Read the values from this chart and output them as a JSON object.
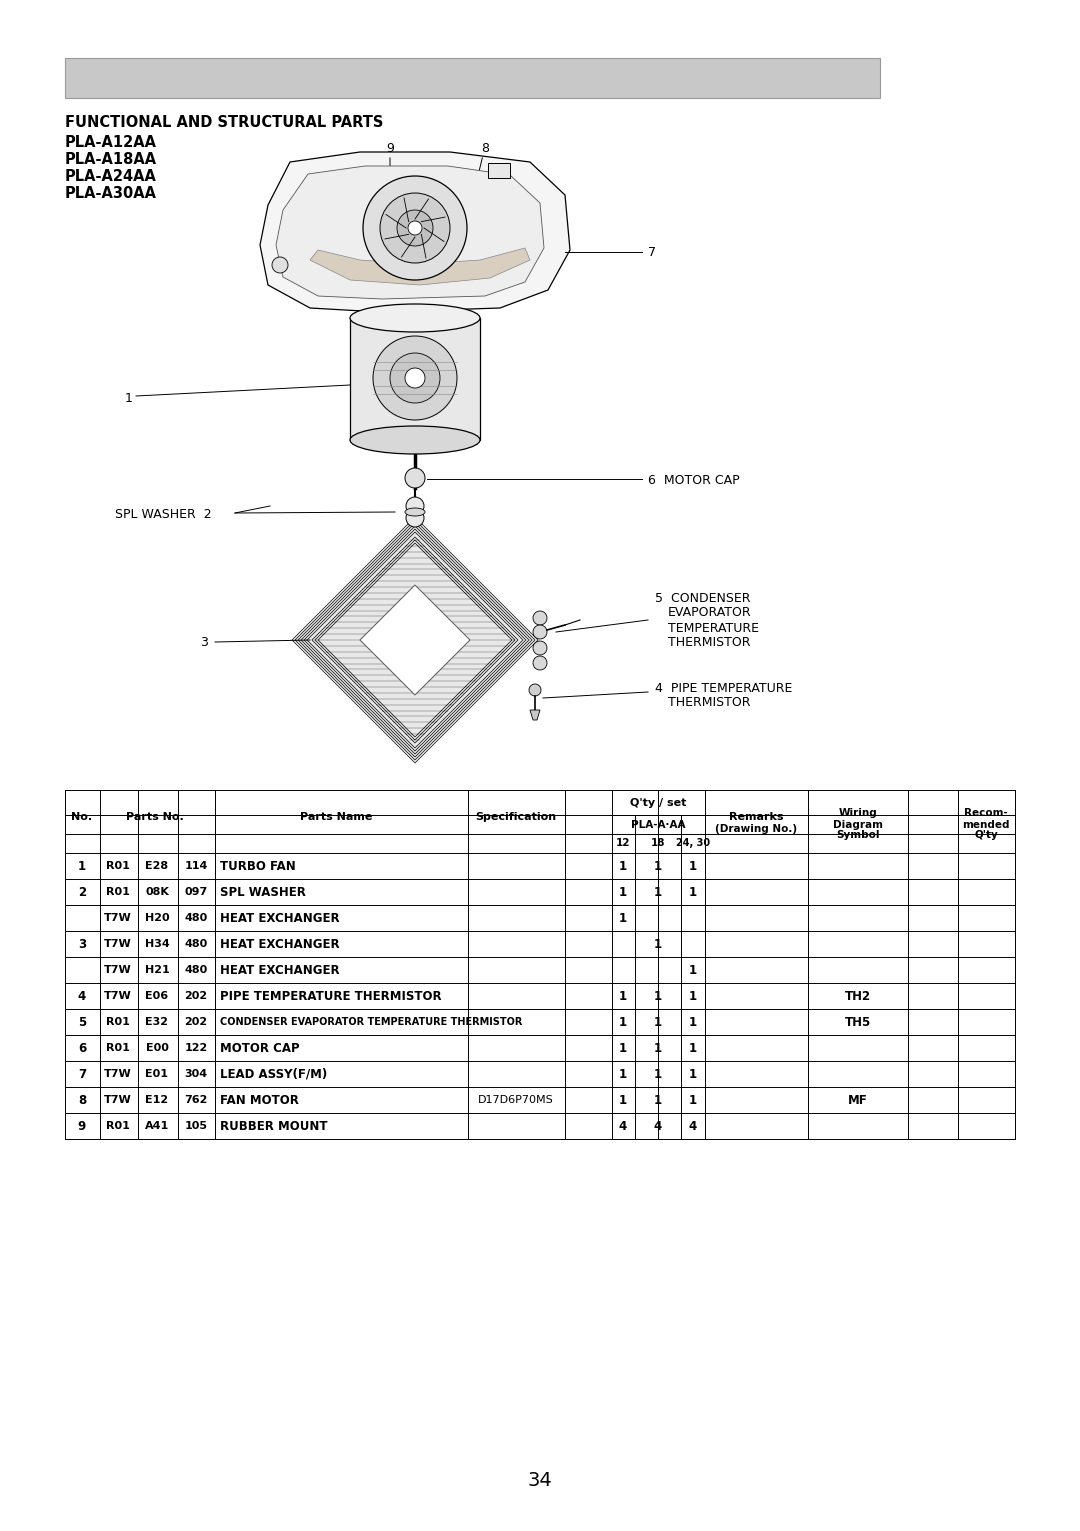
{
  "page_number": "34",
  "header_box_color": "#c8c8c8",
  "header_box_edge": "#999999",
  "title_line1": "FUNCTIONAL AND STRUCTURAL PARTS",
  "title_line2": "PLA-A12AA",
  "title_line3": "PLA-A18AA",
  "title_line4": "PLA-A24AA",
  "title_line5": "PLA-A30AA",
  "bg_color": "#ffffff",
  "table_rows": [
    [
      "1",
      "R01",
      "E28",
      "114",
      "TURBO FAN",
      "",
      "1",
      "1",
      "1",
      "",
      "",
      ""
    ],
    [
      "2",
      "R01",
      "08K",
      "097",
      "SPL WASHER",
      "",
      "1",
      "1",
      "1",
      "",
      "",
      ""
    ],
    [
      "",
      "T7W",
      "H20",
      "480",
      "HEAT EXCHANGER",
      "",
      "1",
      "",
      "",
      "",
      "",
      ""
    ],
    [
      "3",
      "T7W",
      "H34",
      "480",
      "HEAT EXCHANGER",
      "",
      "",
      "1",
      "",
      "",
      "",
      ""
    ],
    [
      "",
      "T7W",
      "H21",
      "480",
      "HEAT EXCHANGER",
      "",
      "",
      "",
      "1",
      "",
      "",
      ""
    ],
    [
      "4",
      "T7W",
      "E06",
      "202",
      "PIPE TEMPERATURE THERMISTOR",
      "",
      "1",
      "1",
      "1",
      "",
      "TH2",
      ""
    ],
    [
      "5",
      "R01",
      "E32",
      "202",
      "CONDENSER EVAPORATOR TEMPERATURE THERMISTOR",
      "",
      "1",
      "1",
      "1",
      "",
      "TH5",
      ""
    ],
    [
      "6",
      "R01",
      "E00",
      "122",
      "MOTOR CAP",
      "",
      "1",
      "1",
      "1",
      "",
      "",
      ""
    ],
    [
      "7",
      "T7W",
      "E01",
      "304",
      "LEAD ASSY(F/M)",
      "",
      "1",
      "1",
      "1",
      "",
      "",
      ""
    ],
    [
      "8",
      "T7W",
      "E12",
      "762",
      "FAN MOTOR",
      "D17D6P70MS",
      "1",
      "1",
      "1",
      "",
      "MF",
      ""
    ],
    [
      "9",
      "R01",
      "A41",
      "105",
      "RUBBER MOUNT",
      "",
      "4",
      "4",
      "4",
      "",
      "",
      ""
    ]
  ]
}
